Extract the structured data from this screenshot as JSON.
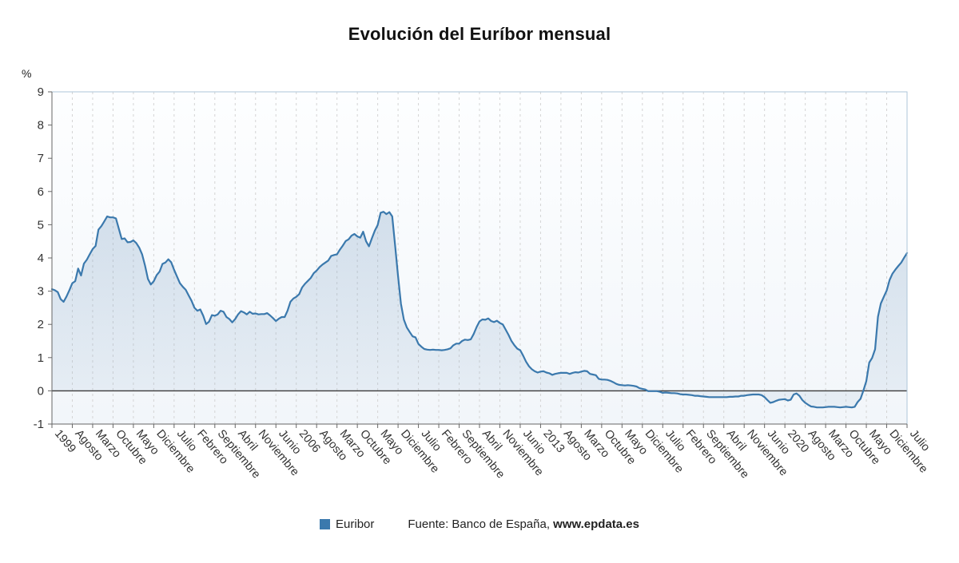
{
  "title": "Evolución del Euríbor mensual",
  "y_axis_unit": "%",
  "legend": {
    "series_label": "Euribor",
    "source_prefix": "Fuente: Banco de España, ",
    "source_link": "www.epdata.es"
  },
  "colors": {
    "line": "#3b79ad",
    "area_top": "rgba(128,162,196,0.32)",
    "area_bottom": "rgba(128,162,196,0.10)",
    "plot_bg_top": "#fdfeff",
    "plot_bg_bottom": "#f2f6fa",
    "grid": "#d4d4d4",
    "border": "#aec6d9",
    "axis": "#666666",
    "zero_line": "#3a3a3a",
    "tick_text": "#333333"
  },
  "chart_data": {
    "type": "area",
    "title": "Evolución del Euríbor mensual",
    "xlabel": "",
    "ylabel": "%",
    "ylim": [
      -1,
      9
    ],
    "yticks": [
      9,
      8,
      7,
      6,
      5,
      4,
      3,
      2,
      1,
      0,
      -1
    ],
    "grid": "vertical-dashed",
    "legend_position": "bottom",
    "x_range": "Enero 1999 - Julio 2023 (mensual)",
    "x_tick_every": 7,
    "x_tick_labels": [
      "1999",
      "Agosto",
      "Marzo",
      "Octubre",
      "Mayo",
      "Diciembre",
      "Julio",
      "Febrero",
      "Septiembre",
      "Abril",
      "Noviembre",
      "Junio",
      "2006",
      "Agosto",
      "Marzo",
      "Octubre",
      "Mayo",
      "Diciembre",
      "Julio",
      "Febrero",
      "Septiembre",
      "Abril",
      "Noviembre",
      "Junio",
      "2013",
      "Agosto",
      "Marzo",
      "Octubre",
      "Mayo",
      "Diciembre",
      "Julio",
      "Febrero",
      "Septiembre",
      "Abril",
      "Noviembre",
      "Junio",
      "2020",
      "Agosto",
      "Marzo",
      "Octubre",
      "Mayo",
      "Diciembre",
      "Julio"
    ],
    "series": [
      {
        "name": "Euribor",
        "values": [
          3.06,
          3.03,
          2.97,
          2.76,
          2.68,
          2.84,
          3.03,
          3.24,
          3.3,
          3.68,
          3.47,
          3.83,
          3.95,
          4.11,
          4.27,
          4.36,
          4.85,
          4.96,
          5.1,
          5.25,
          5.22,
          5.22,
          5.19,
          4.88,
          4.57,
          4.59,
          4.47,
          4.48,
          4.53,
          4.45,
          4.31,
          4.11,
          3.77,
          3.37,
          3.2,
          3.3,
          3.48,
          3.59,
          3.82,
          3.86,
          3.96,
          3.87,
          3.64,
          3.44,
          3.24,
          3.13,
          3.04,
          2.87,
          2.71,
          2.5,
          2.41,
          2.45,
          2.26,
          2.01,
          2.08,
          2.28,
          2.26,
          2.3,
          2.41,
          2.38,
          2.22,
          2.16,
          2.06,
          2.16,
          2.3,
          2.4,
          2.36,
          2.3,
          2.38,
          2.32,
          2.33,
          2.3,
          2.31,
          2.31,
          2.34,
          2.27,
          2.19,
          2.1,
          2.17,
          2.22,
          2.22,
          2.41,
          2.68,
          2.78,
          2.83,
          2.91,
          3.11,
          3.22,
          3.31,
          3.4,
          3.54,
          3.62,
          3.72,
          3.8,
          3.86,
          3.92,
          4.06,
          4.09,
          4.11,
          4.25,
          4.37,
          4.51,
          4.56,
          4.67,
          4.72,
          4.65,
          4.61,
          4.79,
          4.5,
          4.35,
          4.59,
          4.82,
          4.99,
          5.36,
          5.39,
          5.32,
          5.38,
          5.25,
          4.35,
          3.45,
          2.62,
          2.14,
          1.91,
          1.77,
          1.64,
          1.61,
          1.41,
          1.33,
          1.26,
          1.24,
          1.23,
          1.24,
          1.23,
          1.23,
          1.22,
          1.23,
          1.25,
          1.28,
          1.37,
          1.42,
          1.42,
          1.5,
          1.54,
          1.53,
          1.55,
          1.71,
          1.92,
          2.09,
          2.15,
          2.14,
          2.18,
          2.1,
          2.07,
          2.11,
          2.04,
          2.0,
          1.84,
          1.68,
          1.5,
          1.37,
          1.27,
          1.22,
          1.06,
          0.88,
          0.74,
          0.65,
          0.59,
          0.55,
          0.58,
          0.59,
          0.55,
          0.53,
          0.48,
          0.51,
          0.53,
          0.54,
          0.54,
          0.54,
          0.51,
          0.54,
          0.56,
          0.55,
          0.58,
          0.6,
          0.59,
          0.51,
          0.49,
          0.47,
          0.36,
          0.34,
          0.34,
          0.33,
          0.3,
          0.26,
          0.21,
          0.18,
          0.17,
          0.16,
          0.17,
          0.16,
          0.15,
          0.13,
          0.08,
          0.06,
          0.04,
          -0.01,
          -0.01,
          -0.01,
          -0.01,
          -0.03,
          -0.06,
          -0.05,
          -0.06,
          -0.07,
          -0.07,
          -0.08,
          -0.1,
          -0.11,
          -0.11,
          -0.12,
          -0.13,
          -0.15,
          -0.15,
          -0.16,
          -0.17,
          -0.18,
          -0.19,
          -0.19,
          -0.19,
          -0.19,
          -0.19,
          -0.19,
          -0.19,
          -0.18,
          -0.18,
          -0.17,
          -0.17,
          -0.15,
          -0.15,
          -0.13,
          -0.12,
          -0.11,
          -0.11,
          -0.11,
          -0.13,
          -0.19,
          -0.28,
          -0.36,
          -0.34,
          -0.3,
          -0.27,
          -0.26,
          -0.25,
          -0.29,
          -0.27,
          -0.11,
          -0.08,
          -0.15,
          -0.28,
          -0.36,
          -0.42,
          -0.47,
          -0.48,
          -0.5,
          -0.5,
          -0.5,
          -0.49,
          -0.48,
          -0.48,
          -0.48,
          -0.49,
          -0.5,
          -0.49,
          -0.48,
          -0.49,
          -0.5,
          -0.48,
          -0.34,
          -0.24,
          0.01,
          0.29,
          0.85,
          0.99,
          1.25,
          2.23,
          2.63,
          2.83,
          3.02,
          3.34,
          3.53,
          3.65,
          3.76,
          3.86,
          4.01,
          4.15
        ]
      }
    ]
  }
}
